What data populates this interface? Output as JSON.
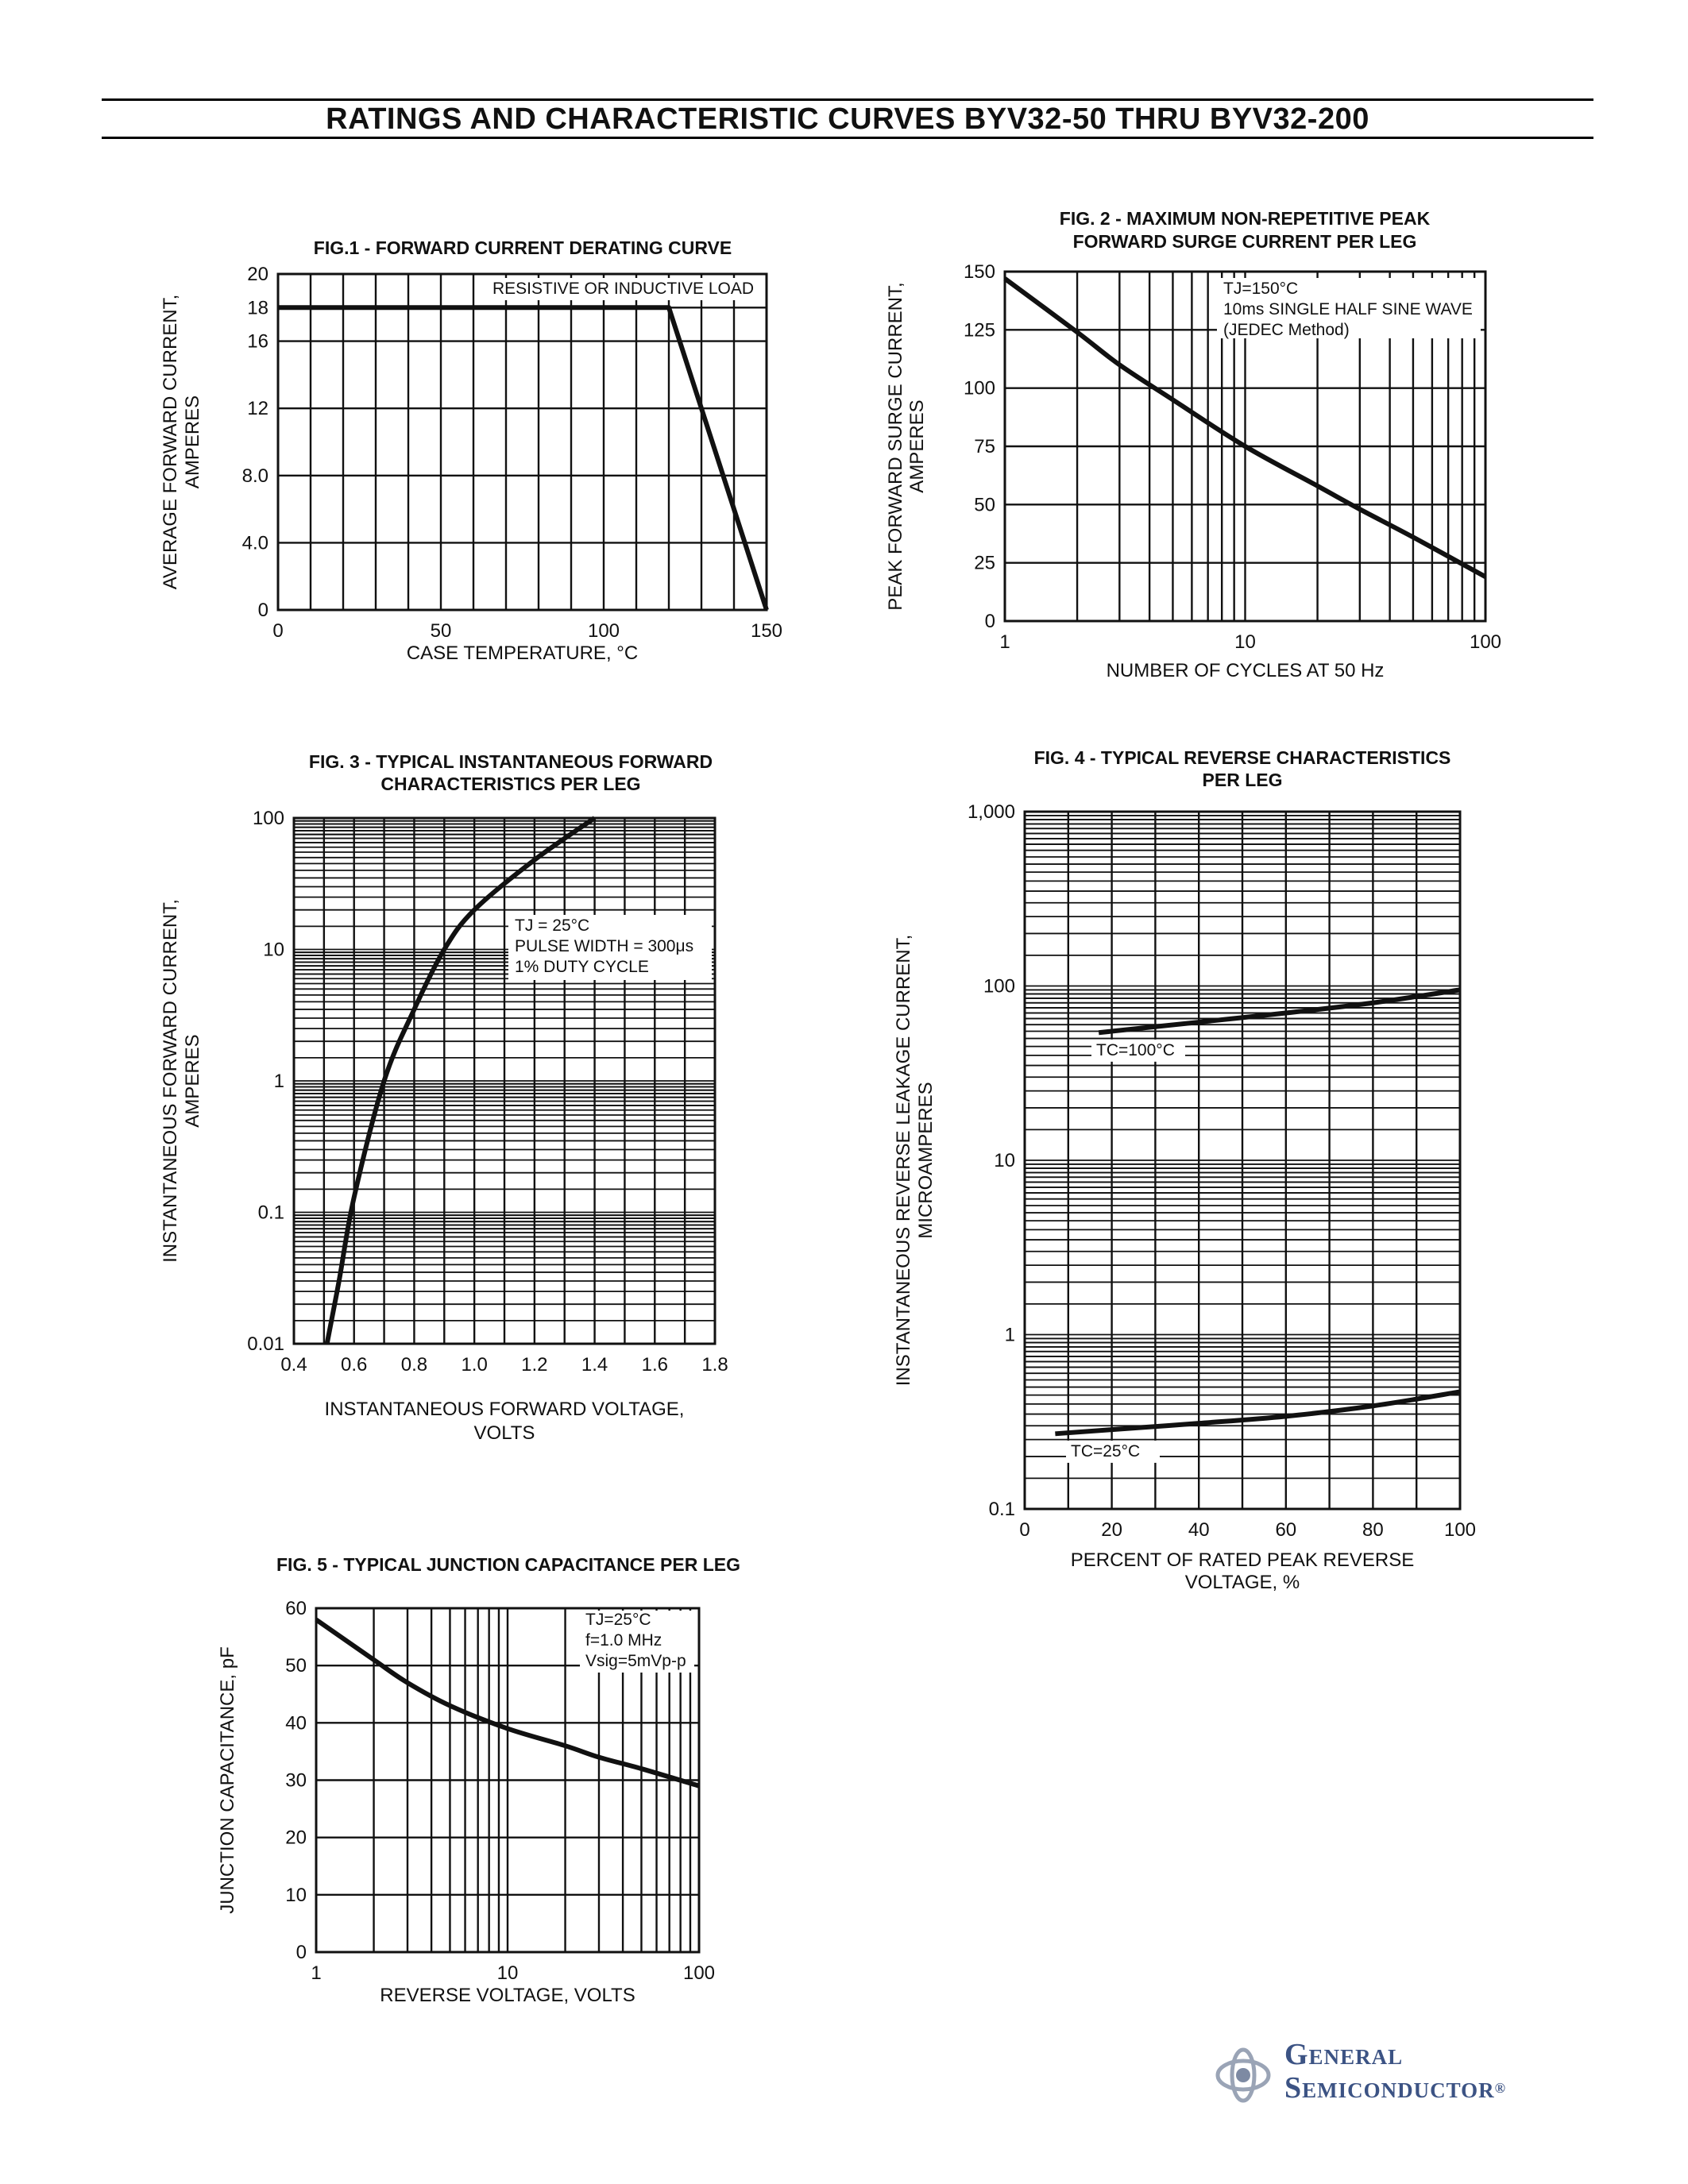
{
  "page": {
    "title": "RATINGS AND CHARACTERISTIC CURVES BYV32-50 THRU BYV32-200"
  },
  "brand": {
    "line1": "General",
    "line2": "Semiconductor",
    "registered": "®",
    "color": "#3c5384"
  },
  "chart_data": [
    {
      "id": "fig1",
      "type": "line",
      "title": "FIG.1 - FORWARD CURRENT DERATING CURVE",
      "xlabel": "CASE TEMPERATURE, °C",
      "ylabel": [
        "AVERAGE FORWARD CURRENT,",
        "AMPERES"
      ],
      "xscale": "linear",
      "yscale": "linear",
      "xlim": [
        0,
        150
      ],
      "ylim": [
        0,
        20
      ],
      "xticks": [
        0,
        50,
        100,
        150
      ],
      "xtick_labels": [
        "0",
        "50",
        "100",
        "150"
      ],
      "yticks": [
        0,
        4,
        8,
        12,
        16,
        18,
        20
      ],
      "ytick_labels": [
        "0",
        "4.0",
        "8.0",
        "12",
        "16",
        "18",
        "20"
      ],
      "xgrid": [
        0,
        10,
        20,
        30,
        40,
        50,
        60,
        70,
        80,
        90,
        100,
        110,
        120,
        130,
        140,
        150
      ],
      "ygrid": [
        0,
        4,
        8,
        12,
        16,
        18,
        20
      ],
      "annotations": [
        "RESISTIVE OR INDUCTIVE LOAD"
      ],
      "series": [
        {
          "name": "derating",
          "x": [
            0,
            120,
            150
          ],
          "y": [
            18,
            18,
            0
          ]
        }
      ]
    },
    {
      "id": "fig2",
      "type": "line",
      "title": [
        "FIG. 2 - MAXIMUM NON-REPETITIVE PEAK",
        "FORWARD SURGE CURRENT PER LEG"
      ],
      "xlabel": "NUMBER OF CYCLES AT 50 Hz",
      "ylabel": [
        "PEAK FORWARD SURGE CURRENT,",
        "AMPERES"
      ],
      "xscale": "log",
      "yscale": "linear",
      "xlim": [
        1,
        100
      ],
      "ylim": [
        0,
        150
      ],
      "xticks": [
        1,
        10,
        100
      ],
      "xtick_labels": [
        "1",
        "10",
        "100"
      ],
      "yticks": [
        0,
        25,
        50,
        75,
        100,
        125,
        150
      ],
      "ytick_labels": [
        "0",
        "25",
        "50",
        "75",
        "100",
        "125",
        "150"
      ],
      "annotations": [
        "TJ=150°C",
        "10ms SINGLE HALF SINE WAVE",
        "(JEDEC Method)"
      ],
      "series": [
        {
          "name": "surge",
          "x": [
            1,
            2,
            3,
            5,
            10,
            20,
            30,
            50,
            100
          ],
          "y": [
            147,
            124,
            110,
            95,
            75,
            58,
            48,
            36,
            19
          ]
        }
      ]
    },
    {
      "id": "fig3",
      "type": "line",
      "title": [
        "FIG. 3 - TYPICAL INSTANTANEOUS FORWARD",
        "CHARACTERISTICS PER LEG"
      ],
      "xlabel": [
        "INSTANTANEOUS FORWARD VOLTAGE,",
        "VOLTS"
      ],
      "ylabel": [
        "INSTANTANEOUS FORWARD CURRENT,",
        "AMPERES"
      ],
      "xscale": "linear",
      "yscale": "log",
      "xlim": [
        0.4,
        1.8
      ],
      "ylim": [
        0.01,
        100
      ],
      "xticks": [
        0.4,
        0.6,
        0.8,
        1.0,
        1.2,
        1.4,
        1.6,
        1.8
      ],
      "xtick_labels": [
        "0.4",
        "0.6",
        "0.8",
        "1.0",
        "1.2",
        "1.4",
        "1.6",
        "1.8"
      ],
      "yticks": [
        0.01,
        0.1,
        1,
        10,
        100
      ],
      "ytick_labels": [
        "0.01",
        "0.1",
        "1",
        "10",
        "100"
      ],
      "annotations": [
        "TJ = 25°C",
        "PULSE WIDTH = 300μs",
        "1% DUTY CYCLE"
      ],
      "series": [
        {
          "name": "forward",
          "x": [
            0.51,
            0.55,
            0.6,
            0.7,
            0.8,
            0.9,
            1.0,
            1.2,
            1.4
          ],
          "y": [
            0.01,
            0.03,
            0.13,
            1.0,
            3.5,
            10,
            20,
            48,
            100
          ]
        }
      ]
    },
    {
      "id": "fig4",
      "type": "line",
      "title": [
        "FIG. 4 - TYPICAL REVERSE CHARACTERISTICS",
        "PER LEG"
      ],
      "xlabel": [
        "PERCENT OF RATED PEAK REVERSE",
        "VOLTAGE, %"
      ],
      "ylabel": [
        "INSTANTANEOUS REVERSE LEAKAGE CURRENT,",
        "MICROAMPERES"
      ],
      "xscale": "linear",
      "yscale": "log",
      "xlim": [
        0,
        100
      ],
      "ylim": [
        0.1,
        1000
      ],
      "xticks": [
        0,
        20,
        40,
        60,
        80,
        100
      ],
      "xtick_labels": [
        "0",
        "20",
        "40",
        "60",
        "80",
        "100"
      ],
      "yticks": [
        0.1,
        1,
        10,
        100,
        1000
      ],
      "ytick_labels": [
        "0.1",
        "1",
        "10",
        "100",
        "1,000"
      ],
      "series": [
        {
          "name": "TC=100°C",
          "x": [
            17,
            40,
            60,
            80,
            100
          ],
          "y": [
            54,
            62,
            70,
            80,
            95
          ]
        },
        {
          "name": "TC=25°C",
          "x": [
            7,
            20,
            40,
            60,
            80,
            100
          ],
          "y": [
            0.27,
            0.285,
            0.31,
            0.34,
            0.39,
            0.47
          ]
        }
      ]
    },
    {
      "id": "fig5",
      "type": "line",
      "title": "FIG. 5 - TYPICAL JUNCTION CAPACITANCE PER LEG",
      "xlabel": "REVERSE VOLTAGE, VOLTS",
      "ylabel": "JUNCTION CAPACITANCE, pF",
      "xscale": "log",
      "yscale": "linear",
      "xlim": [
        1,
        100
      ],
      "ylim": [
        0,
        60
      ],
      "xticks": [
        1,
        10,
        100
      ],
      "xtick_labels": [
        "1",
        "10",
        "100"
      ],
      "yticks": [
        0,
        10,
        20,
        30,
        40,
        50,
        60
      ],
      "ytick_labels": [
        "0",
        "10",
        "20",
        "30",
        "40",
        "50",
        "60"
      ],
      "annotations": [
        "TJ=25°C",
        "f=1.0 MHz",
        "Vsig=5mVp-p"
      ],
      "series": [
        {
          "name": "capacitance",
          "x": [
            1,
            2,
            3,
            5,
            10,
            20,
            30,
            50,
            100
          ],
          "y": [
            58,
            51,
            47,
            43,
            39,
            36,
            34,
            32,
            29
          ]
        }
      ]
    }
  ]
}
